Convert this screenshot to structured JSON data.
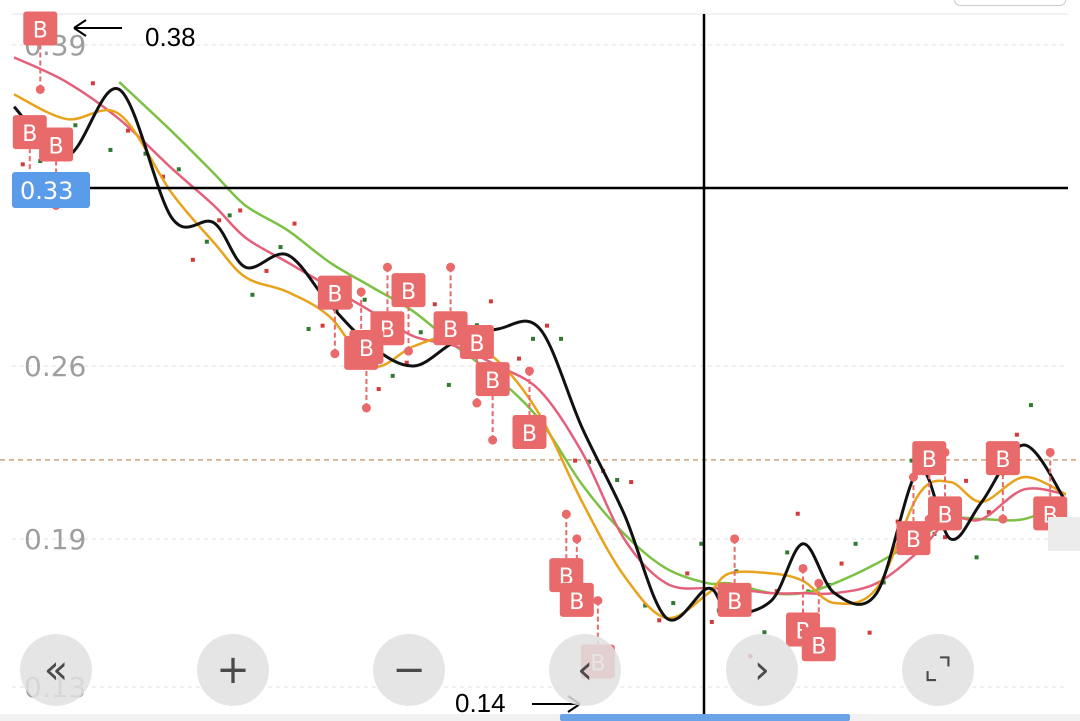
{
  "chart_data": {
    "type": "line",
    "y_ticks": [
      "0.39",
      "0.26",
      "0.19",
      "0.13"
    ],
    "ylim": [
      0.13,
      0.39
    ],
    "crosshair_value": "0.33",
    "max_annotation": "0.38",
    "min_annotation": "0.14",
    "reference_line": 0.222,
    "grid": true,
    "series": [
      {
        "color": "#111111",
        "x": [
          0,
          5,
          10,
          15,
          19,
          22,
          26,
          30,
          34,
          38,
          42,
          46,
          50,
          54,
          58,
          62,
          66,
          68,
          72,
          75,
          78,
          82,
          86,
          89,
          92,
          96,
          100
        ],
        "y": [
          0.365,
          0.345,
          0.372,
          0.32,
          0.318,
          0.3,
          0.305,
          0.285,
          0.268,
          0.26,
          0.27,
          0.275,
          0.275,
          0.235,
          0.2,
          0.158,
          0.17,
          0.16,
          0.165,
          0.188,
          0.168,
          0.168,
          0.218,
          0.19,
          0.205,
          0.228,
          0.205
        ]
      },
      {
        "color": "#e8a21c",
        "x": [
          0,
          5,
          10,
          15,
          19,
          22,
          26,
          30,
          34,
          38,
          42,
          46,
          50,
          54,
          58,
          62,
          66,
          68,
          72,
          75,
          78,
          82,
          86,
          89,
          92,
          96,
          100
        ],
        "y": [
          0.37,
          0.36,
          0.362,
          0.33,
          0.31,
          0.296,
          0.29,
          0.28,
          0.26,
          0.268,
          0.272,
          0.262,
          0.24,
          0.205,
          0.175,
          0.158,
          0.168,
          0.176,
          0.176,
          0.173,
          0.164,
          0.17,
          0.208,
          0.213,
          0.205,
          0.215,
          0.208
        ]
      },
      {
        "color": "#e4607a",
        "x": [
          0,
          5,
          10,
          15,
          19,
          22,
          26,
          30,
          34,
          38,
          42,
          46,
          50,
          54,
          58,
          62,
          66,
          68,
          72,
          75,
          78,
          82,
          86,
          89,
          92,
          96,
          100
        ],
        "y": [
          0.385,
          0.375,
          0.36,
          0.34,
          0.325,
          0.312,
          0.302,
          0.292,
          0.282,
          0.272,
          0.268,
          0.26,
          0.25,
          0.225,
          0.19,
          0.172,
          0.17,
          0.17,
          0.168,
          0.168,
          0.168,
          0.172,
          0.185,
          0.198,
          0.198,
          0.21,
          0.208
        ]
      },
      {
        "color": "#7cc146",
        "x": [
          10,
          15,
          19,
          22,
          26,
          30,
          34,
          38,
          42,
          46,
          50,
          54,
          58,
          62,
          66,
          68,
          72,
          75,
          78,
          82,
          86,
          89,
          92,
          96,
          100
        ],
        "y": [
          0.375,
          0.355,
          0.338,
          0.325,
          0.315,
          0.302,
          0.292,
          0.282,
          0.268,
          0.255,
          0.238,
          0.212,
          0.192,
          0.178,
          0.172,
          0.172,
          0.168,
          0.168,
          0.172,
          0.18,
          0.19,
          0.198,
          0.198,
          0.198,
          0.205
        ]
      }
    ],
    "markers": [
      {
        "label": "B",
        "x": 2.5,
        "y": 0.372,
        "dir": "up"
      },
      {
        "label": "B",
        "x": 1.5,
        "y": 0.33,
        "dir": "up"
      },
      {
        "label": "B",
        "x": 4.0,
        "y": 0.325,
        "dir": "up"
      },
      {
        "label": "B",
        "x": 33.0,
        "y": 0.29,
        "dir": "down"
      },
      {
        "label": "B",
        "x": 35.5,
        "y": 0.3,
        "dir": "down"
      },
      {
        "label": "B",
        "x": 30.5,
        "y": 0.265,
        "dir": "up"
      },
      {
        "label": "B",
        "x": 33.5,
        "y": 0.243,
        "dir": "up"
      },
      {
        "label": "B",
        "x": 37.5,
        "y": 0.266,
        "dir": "up"
      },
      {
        "label": "B",
        "x": 41.5,
        "y": 0.3,
        "dir": "down"
      },
      {
        "label": "B",
        "x": 44.0,
        "y": 0.245,
        "dir": "up"
      },
      {
        "label": "B",
        "x": 45.5,
        "y": 0.23,
        "dir": "up"
      },
      {
        "label": "B",
        "x": 49.0,
        "y": 0.258,
        "dir": "down"
      },
      {
        "label": "B",
        "x": 52.5,
        "y": 0.2,
        "dir": "down"
      },
      {
        "label": "B",
        "x": 53.5,
        "y": 0.19,
        "dir": "down"
      },
      {
        "label": "B",
        "x": 55.5,
        "y": 0.165,
        "dir": "down"
      },
      {
        "label": "B",
        "x": 68.5,
        "y": 0.19,
        "dir": "down"
      },
      {
        "label": "B",
        "x": 75.0,
        "y": 0.178,
        "dir": "down"
      },
      {
        "label": "B",
        "x": 76.5,
        "y": 0.172,
        "dir": "down"
      },
      {
        "label": "B",
        "x": 85.5,
        "y": 0.215,
        "dir": "down"
      },
      {
        "label": "B",
        "x": 88.5,
        "y": 0.225,
        "dir": "down"
      },
      {
        "label": "B",
        "x": 87.0,
        "y": 0.198,
        "dir": "up"
      },
      {
        "label": "B",
        "x": 94.0,
        "y": 0.198,
        "dir": "up"
      },
      {
        "label": "B",
        "x": 98.5,
        "y": 0.225,
        "dir": "down"
      }
    ]
  },
  "controls": {
    "first": "«",
    "zoom_in": "+",
    "zoom_out": "−",
    "prev": "‹",
    "next": "›",
    "fullscreen": "⌞⌝"
  },
  "colors": {
    "marker": "#e96a6a",
    "crosshair_badge": "#5b9cea",
    "reference_line": "#c9a27a",
    "dot_red": "#d33a3a",
    "dot_green": "#2f7a2f"
  }
}
